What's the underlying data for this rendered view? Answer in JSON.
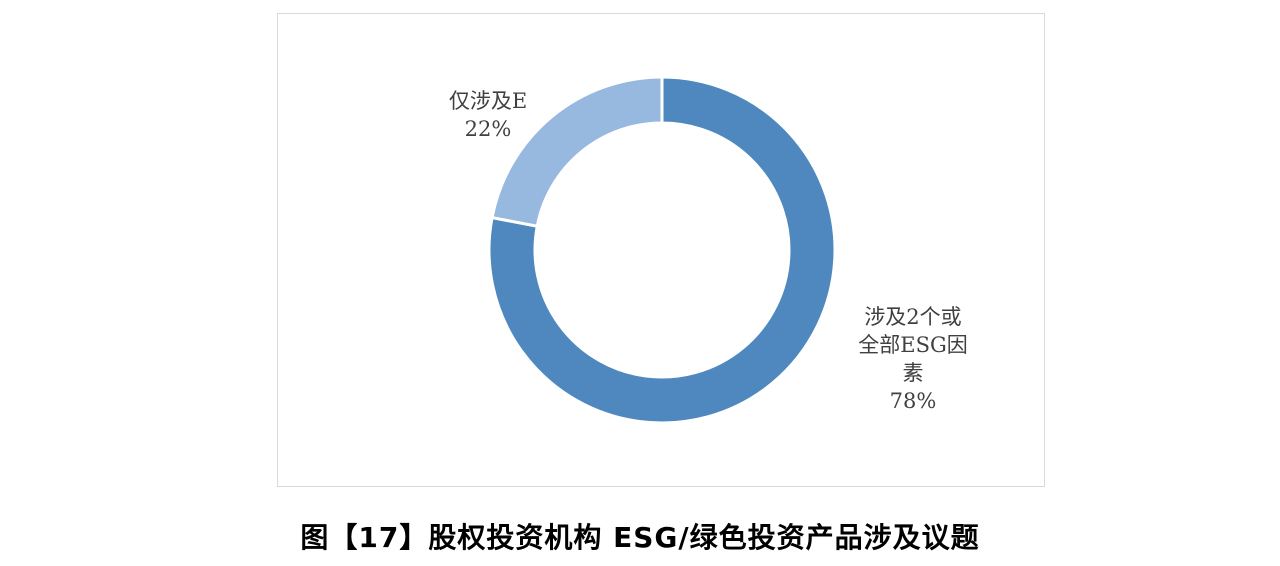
{
  "chart_data": {
    "type": "pie",
    "subtype": "donut",
    "categories": [
      "涉及2个或全部ESG因素",
      "仅涉及E"
    ],
    "values": [
      78,
      22
    ],
    "value_labels": [
      "78%",
      "22%"
    ],
    "colors": [
      "#4F88BE",
      "#97B9E0"
    ],
    "labels": [
      {
        "name": "涉及2个或\n全部ESG因\n素",
        "pct": "78%"
      },
      {
        "name": "仅涉及E",
        "pct": "22%"
      }
    ]
  },
  "caption": "图【17】股权投资机构 ESG/绿色投资产品涉及议题"
}
